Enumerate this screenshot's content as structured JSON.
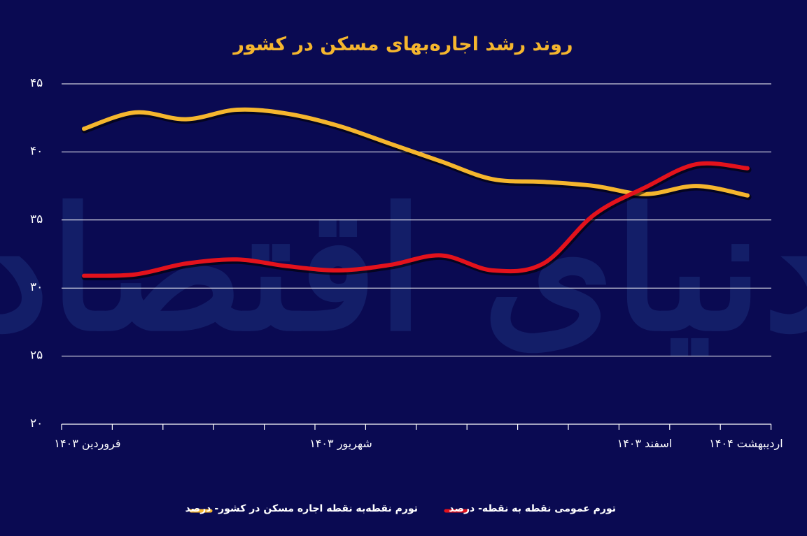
{
  "chart_data": {
    "type": "line",
    "title": "روند رشد اجاره‌بهای مسکن در کشور",
    "ylim": [
      20,
      45
    ],
    "yticks": [
      "۲۰",
      "۲۵",
      "۳۰",
      "۳۵",
      "۴۰",
      "۴۵"
    ],
    "ytick_values": [
      20,
      25,
      30,
      35,
      40,
      45
    ],
    "x_count": 14,
    "x_labels": [
      {
        "index": 0,
        "text": "فروردین ۱۴۰۳"
      },
      {
        "index": 5,
        "text": "شهریور ۱۴۰۳"
      },
      {
        "index": 11,
        "text": "اسفند ۱۴۰۳"
      },
      {
        "index": 13,
        "text": "اردیبهشت ۱۴۰۴"
      }
    ],
    "grid": true,
    "legend_position": "bottom",
    "series": [
      {
        "name": "تورم نقطه‌به نقطه اجاره مسکن در کشور- درصد",
        "color": "#f5b62e",
        "values": [
          41.7,
          42.9,
          42.4,
          43.1,
          42.8,
          41.9,
          40.6,
          39.3,
          38.0,
          37.8,
          37.5,
          36.9,
          37.5,
          36.8
        ]
      },
      {
        "name": "تورم عمومی نقطه به نقطه- درصد",
        "color": "#e3121c",
        "values": [
          30.9,
          31.0,
          31.8,
          32.1,
          31.6,
          31.3,
          31.7,
          32.4,
          31.3,
          31.8,
          35.4,
          37.4,
          39.1,
          38.8
        ]
      }
    ]
  },
  "watermark": "دنیای اقتصاد"
}
